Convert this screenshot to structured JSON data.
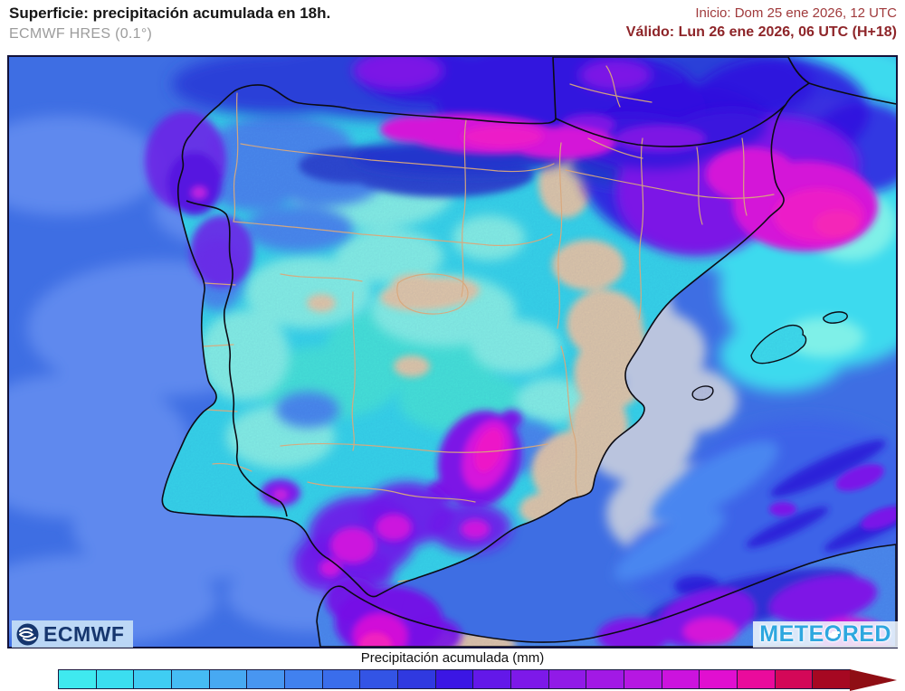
{
  "header": {
    "title": "Superficie: precipitación acumulada en 18h.",
    "subtitle": "ECMWF HRES (0.1°)",
    "run_info": "Inicio: Dom 25 ene 2026, 12 UTC",
    "valid_info": "Válido: Lun 26 ene 2026, 06 UTC (H+18)",
    "accent_color": "#9D2C31"
  },
  "map": {
    "logos": {
      "ecmwf": "ECMWF",
      "meteored_parts": [
        "METE",
        "O",
        "RED"
      ]
    },
    "palette": {
      "sea": "#3E6EE3",
      "land_precip_cyan": "#38D7EB",
      "dry_land_tan": "#E6C9A8",
      "no_precip_sea_gray": "#BAC4DE",
      "coastline": "#0b0b14",
      "province_border": "#D9A87C",
      "heavy_precip_magenta": "#E21ED2"
    }
  },
  "legend": {
    "title": "Precipitación acumulada (mm)",
    "colors": [
      "#3FE9EF",
      "#3BDEF0",
      "#3FCDF3",
      "#45BCF4",
      "#47A9F2",
      "#4896F1",
      "#4181EF",
      "#3A6DEB",
      "#3354E5",
      "#3039E0",
      "#3B16E4",
      "#6318E9",
      "#7D19E9",
      "#911AE7",
      "#A219E5",
      "#B617E2",
      "#CC13DE",
      "#E10FD0",
      "#EA0B9C",
      "#D40858",
      "#A60822"
    ],
    "arrow_color": "#8F0E14"
  }
}
